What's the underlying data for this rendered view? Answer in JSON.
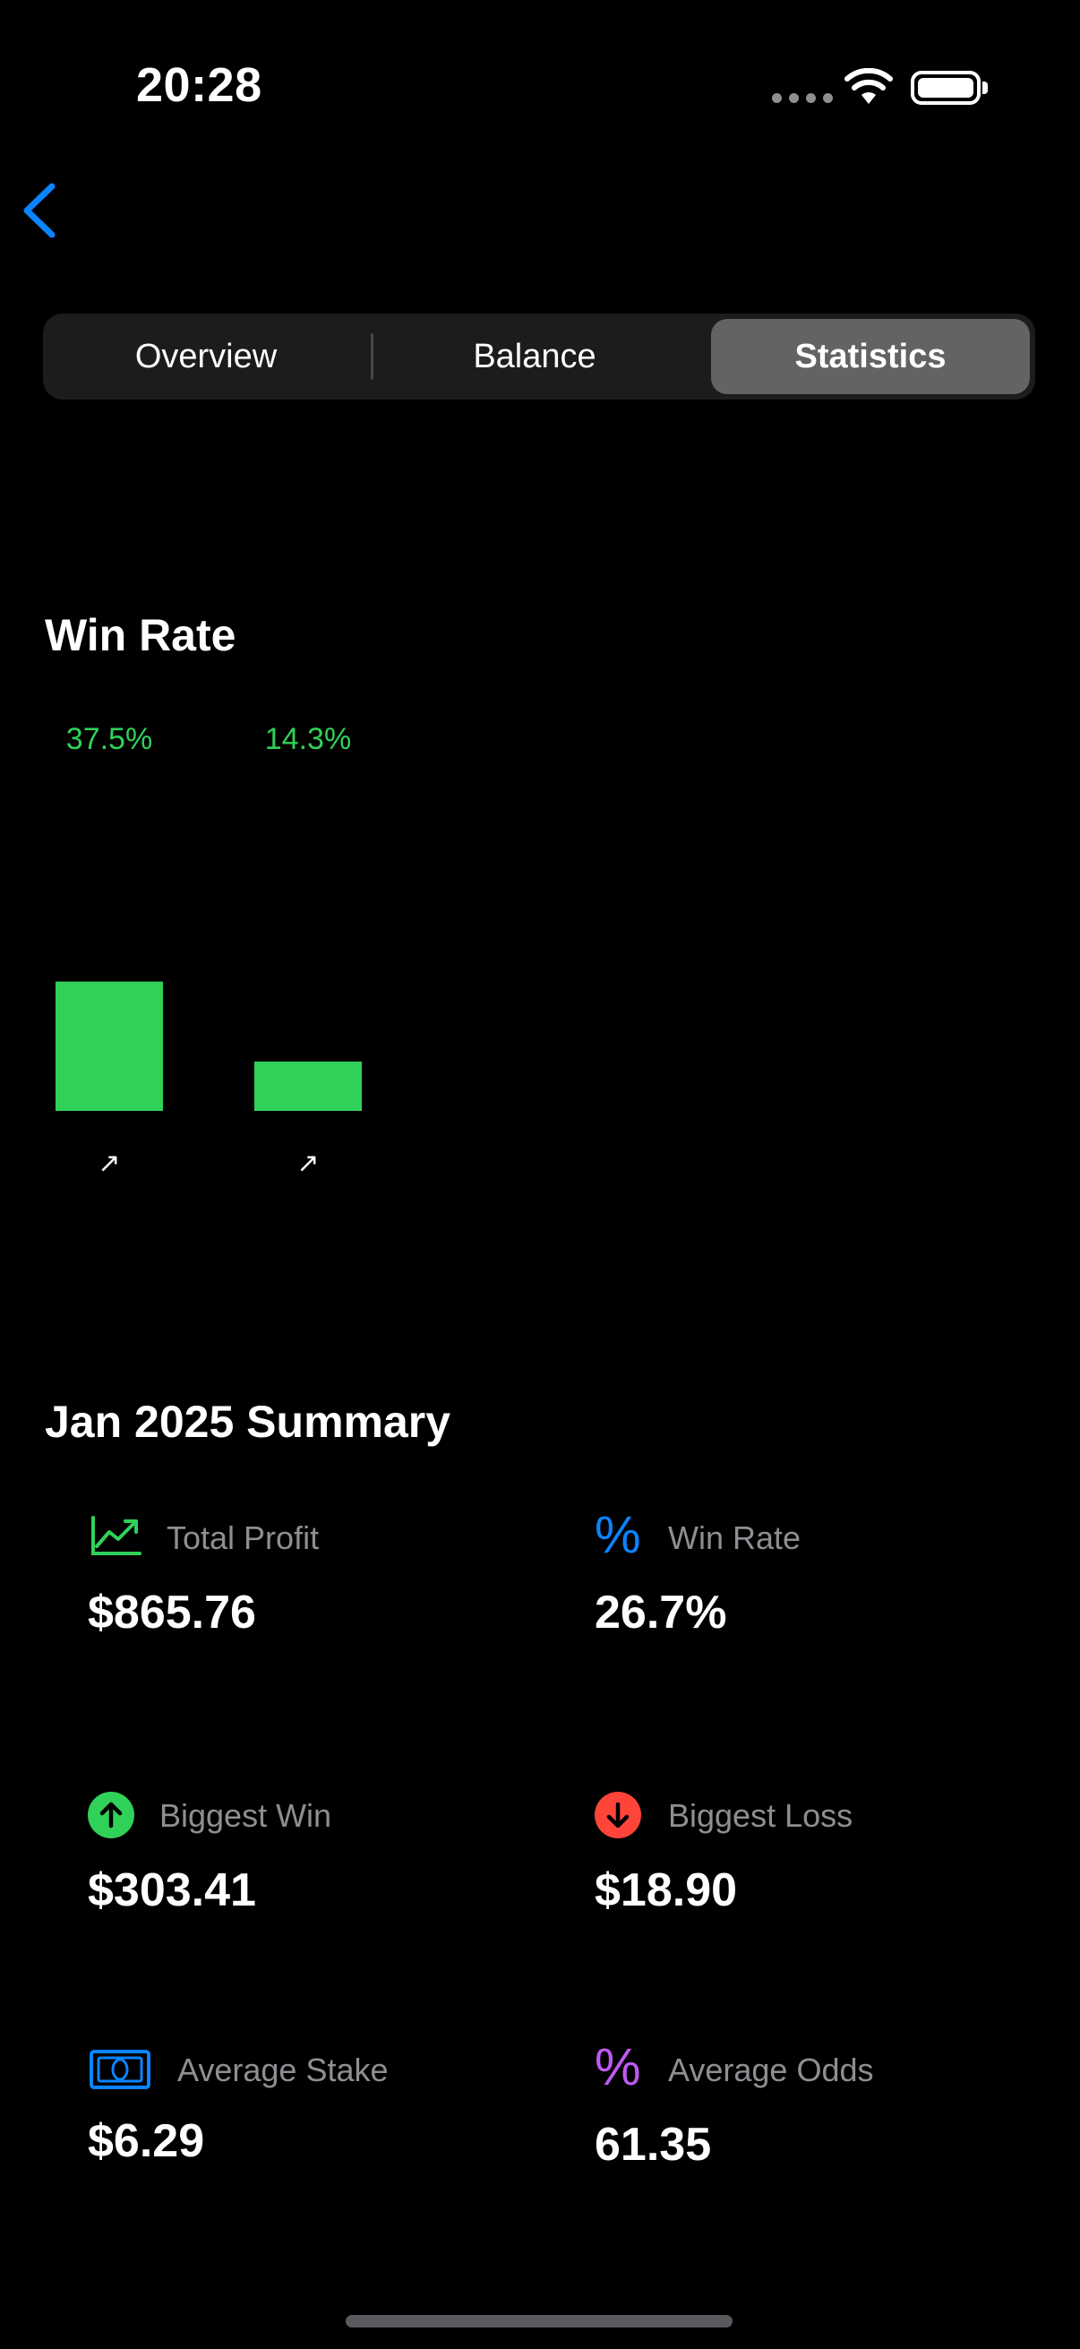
{
  "status_bar": {
    "time": "20:28"
  },
  "segments": {
    "items": [
      "Overview",
      "Balance",
      "Statistics"
    ],
    "selected": "Statistics"
  },
  "win_rate": {
    "title": "Win Rate"
  },
  "chart_data": {
    "type": "bar",
    "title": "Win Rate",
    "categories": [
      "↗",
      "↗"
    ],
    "values": [
      37.5,
      14.3
    ],
    "data_labels": [
      "37.5%",
      "14.3%"
    ],
    "ylim": [
      0,
      100
    ],
    "color": "#30d158",
    "grid": false,
    "legend": "none"
  },
  "summary": {
    "title": "Jan 2025 Summary",
    "total_profit_label": "Total Profit",
    "total_profit_value": "$865.76",
    "win_rate_label": "Win Rate",
    "win_rate_value": "26.7%",
    "biggest_win_label": "Biggest Win",
    "biggest_win_value": "$303.41",
    "biggest_loss_label": "Biggest Loss",
    "biggest_loss_value": "$18.90",
    "average_stake_label": "Average Stake",
    "average_stake_value": "$6.29",
    "average_odds_label": "Average Odds",
    "average_odds_value": "61.35"
  },
  "icons": {
    "back": "chevron-left-icon",
    "total_profit": "chart-line-uptrend-icon",
    "win_rate": "percent-icon",
    "biggest_win": "arrow-up-circle-icon",
    "biggest_loss": "arrow-down-circle-icon",
    "average_stake": "banknote-icon",
    "average_odds": "percent-icon"
  },
  "colors": {
    "accent_blue": "#0a84ff",
    "green": "#30d158",
    "red": "#ff453a",
    "purple": "#bf5af2",
    "secondary_text": "#8e8e93",
    "segment_selected": "#636366",
    "segment_bg": "#1c1c1e"
  }
}
